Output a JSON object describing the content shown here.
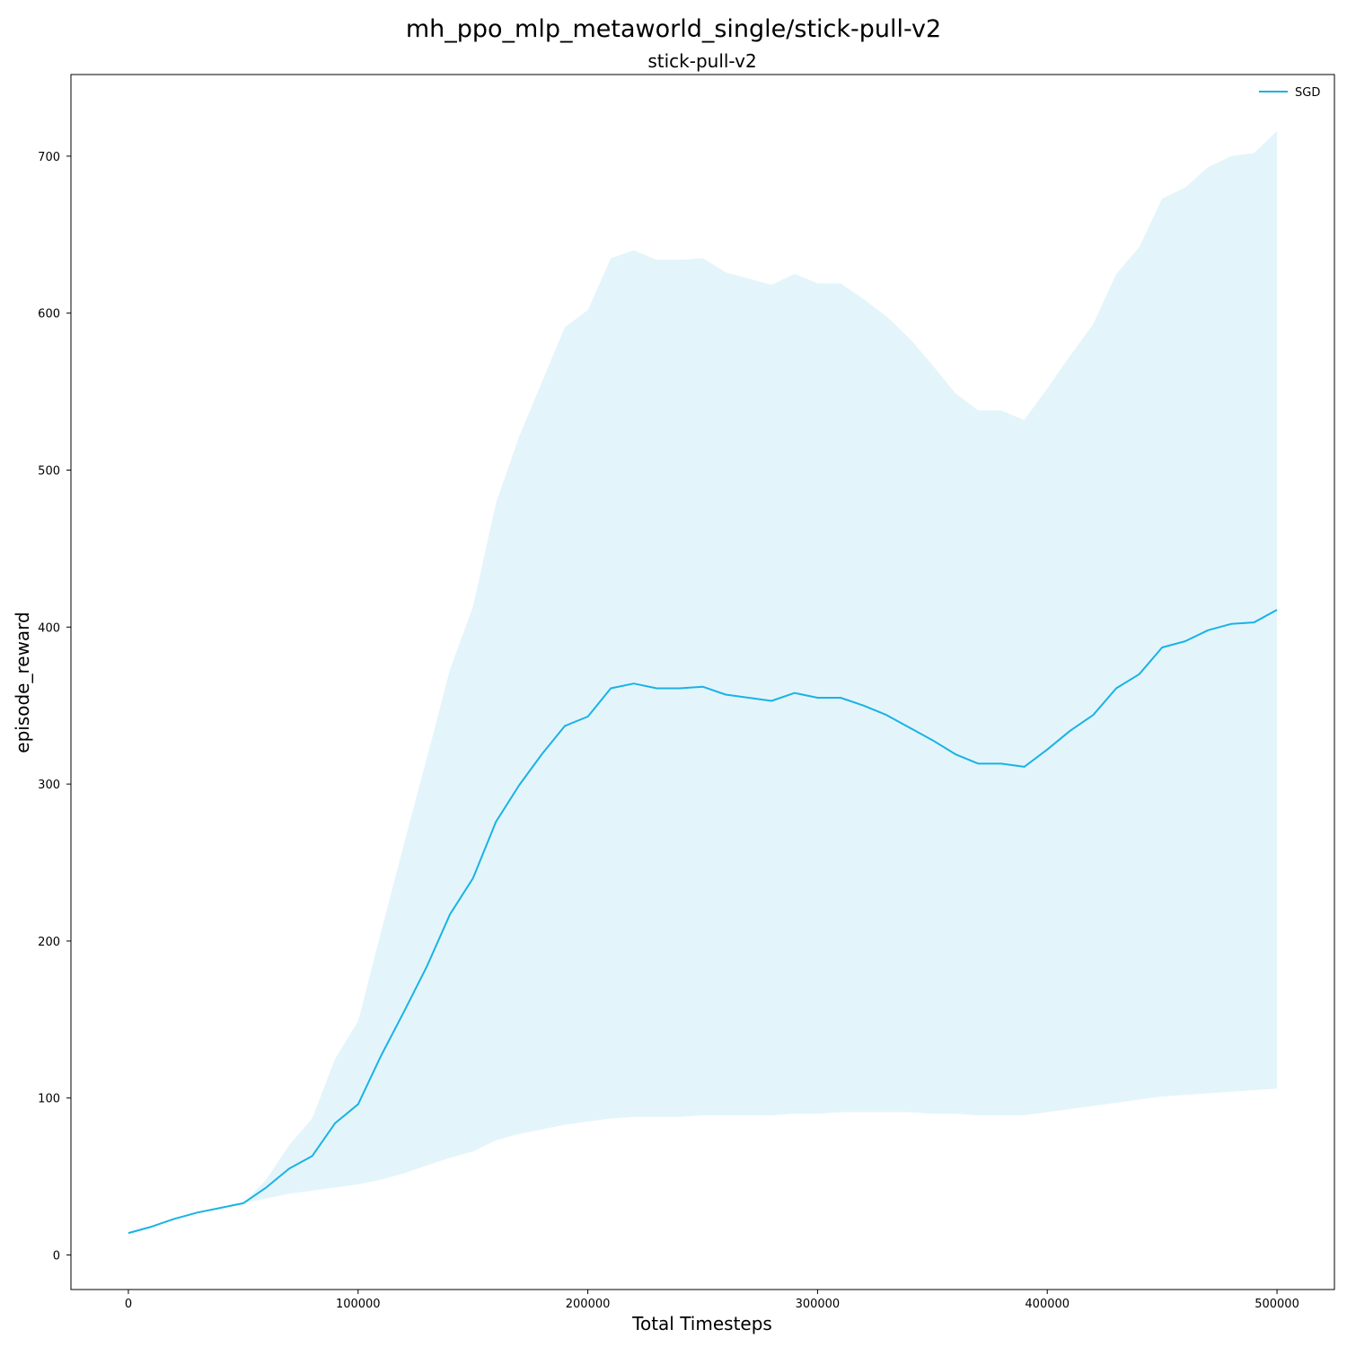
{
  "figure_title": "mh_ppo_mlp_metaworld_single/stick-pull-v2",
  "chart_data": {
    "type": "line",
    "title": "stick-pull-v2",
    "xlabel": "Total Timesteps",
    "ylabel": "episode_reward",
    "xlim": [
      -25000,
      525000
    ],
    "ylim": [
      -22,
      752
    ],
    "xticks": [
      0,
      100000,
      200000,
      300000,
      400000,
      500000
    ],
    "yticks": [
      0,
      100,
      200,
      300,
      400,
      500,
      600,
      700
    ],
    "grid": false,
    "legend_position": "top-right",
    "colors": {
      "line": "#1ab2e6",
      "band": "#e3f5fb"
    },
    "series": [
      {
        "name": "SGD",
        "x": [
          0,
          10000,
          20000,
          30000,
          40000,
          50000,
          60000,
          70000,
          80000,
          90000,
          100000,
          110000,
          120000,
          130000,
          140000,
          150000,
          160000,
          170000,
          180000,
          190000,
          200000,
          210000,
          220000,
          230000,
          240000,
          250000,
          260000,
          270000,
          280000,
          290000,
          300000,
          310000,
          320000,
          330000,
          340000,
          350000,
          360000,
          370000,
          380000,
          390000,
          400000,
          410000,
          420000,
          430000,
          440000,
          450000,
          460000,
          470000,
          480000,
          490000,
          500000
        ],
        "y": [
          14,
          18,
          23,
          27,
          30,
          33,
          43,
          55,
          63,
          84,
          96,
          127,
          155,
          184,
          217,
          240,
          276,
          299,
          319,
          337,
          343,
          361,
          364,
          361,
          361,
          362,
          357,
          355,
          353,
          358,
          355,
          355,
          350,
          344,
          336,
          328,
          319,
          313,
          313,
          311,
          322,
          334,
          344,
          361,
          370,
          387,
          391,
          398,
          402,
          403,
          411
        ],
        "y_upper": [
          14,
          18,
          23,
          27,
          30,
          33,
          48,
          70,
          87,
          125,
          149,
          206,
          262,
          317,
          373,
          413,
          479,
          521,
          556,
          591,
          602,
          635,
          640,
          634,
          634,
          635,
          626,
          622,
          618,
          625,
          619,
          619,
          609,
          598,
          584,
          567,
          549,
          538,
          538,
          532,
          552,
          573,
          593,
          625,
          642,
          673,
          680,
          693,
          700,
          702,
          716
        ],
        "y_lower": [
          14,
          18,
          23,
          27,
          30,
          33,
          36,
          39,
          41,
          43,
          45,
          48,
          52,
          57,
          62,
          66,
          73,
          77,
          80,
          83,
          85,
          87,
          88,
          88,
          88,
          89,
          89,
          89,
          89,
          90,
          90,
          91,
          91,
          91,
          91,
          90,
          90,
          89,
          89,
          89,
          91,
          93,
          95,
          97,
          99,
          101,
          102,
          103,
          104,
          105,
          106
        ]
      }
    ]
  }
}
